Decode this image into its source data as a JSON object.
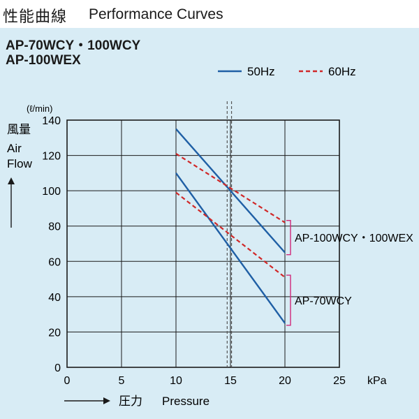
{
  "header": {
    "title_jp": "性能曲線",
    "title_en": "Performance Curves"
  },
  "models": [
    "AP-70WCY・100WCY",
    "AP-100WEX"
  ],
  "colors": {
    "background": "#d8ecf5",
    "hz50": "#1f5fa5",
    "hz60": "#d02828",
    "bracket": "#d0287a",
    "grid": "#1a1a1a"
  },
  "chart_data": {
    "type": "line",
    "x_unit": "kPa",
    "y_unit": "(ℓ/min)",
    "ylabel_jp": "風量",
    "ylabel_en_1": "Air",
    "ylabel_en_2": "Flow",
    "xlabel_jp": "圧力",
    "xlabel_en": "Pressure",
    "xlim": [
      0,
      25
    ],
    "ylim": [
      0,
      140
    ],
    "xticks": [
      0,
      5,
      10,
      15,
      20,
      25
    ],
    "yticks": [
      0,
      20,
      40,
      60,
      80,
      100,
      120,
      140
    ],
    "grid": true,
    "vlines": [
      14.7,
      15.1
    ],
    "legend": [
      {
        "label": "50Hz",
        "style": "solid",
        "color": "#1f5fa5"
      },
      {
        "label": "60Hz",
        "style": "dashed",
        "color": "#d02828"
      }
    ],
    "series": [
      {
        "model": "AP-100WCY・100WEX",
        "hz": "50Hz",
        "x": [
          10,
          20
        ],
        "y": [
          135,
          65
        ]
      },
      {
        "model": "AP-100WCY・100WEX",
        "hz": "60Hz",
        "x": [
          10,
          20
        ],
        "y": [
          121,
          82
        ]
      },
      {
        "model": "AP-70WCY",
        "hz": "50Hz",
        "x": [
          10,
          20
        ],
        "y": [
          110,
          25
        ]
      },
      {
        "model": "AP-70WCY",
        "hz": "60Hz",
        "x": [
          10,
          20
        ],
        "y": [
          99,
          51
        ]
      }
    ],
    "annotations": [
      {
        "text": "AP-100WCY・100WEX",
        "y_range": [
          65,
          82
        ]
      },
      {
        "text": "AP-70WCY",
        "y_range": [
          25,
          51
        ]
      }
    ]
  }
}
